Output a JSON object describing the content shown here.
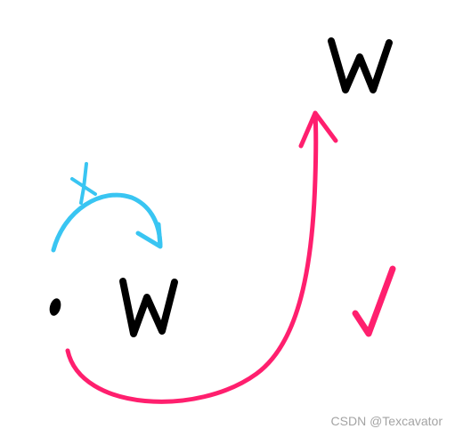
{
  "labels": {
    "w_top": "W",
    "w_middle": "W"
  },
  "watermark": "CSDN @Texcavator",
  "colors": {
    "blue_arrow": "#39c5f2",
    "pink_arrow": "#ff1f6e",
    "ink": "#000000"
  }
}
